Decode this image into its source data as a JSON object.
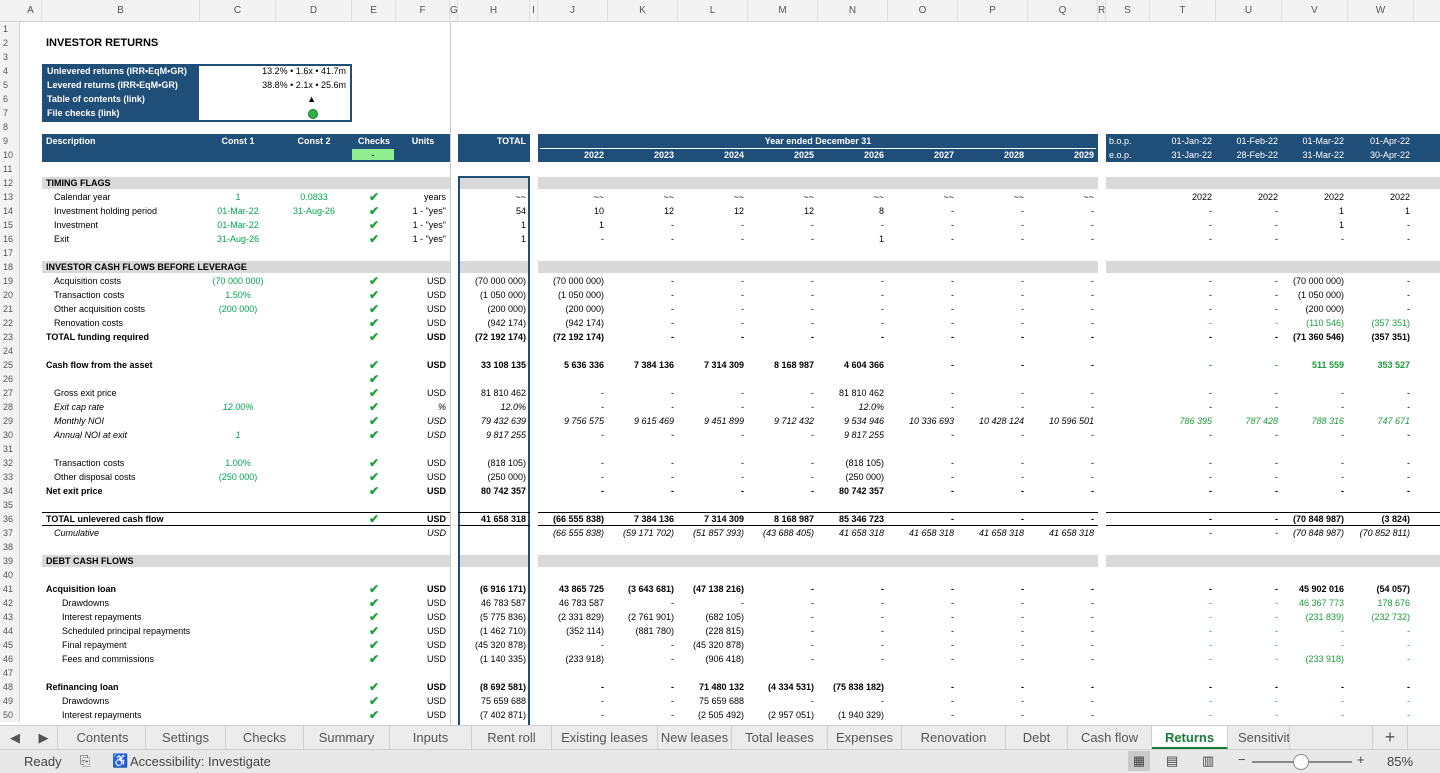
{
  "columns": [
    "A",
    "B",
    "C",
    "D",
    "E",
    "F",
    "G",
    "H",
    "I",
    "J",
    "K",
    "L",
    "M",
    "N",
    "O",
    "P",
    "Q",
    "R",
    "S",
    "T",
    "U",
    "V",
    "W"
  ],
  "rows": [
    "1",
    "2",
    "3",
    "4",
    "5",
    "6",
    "7",
    "8",
    "9",
    "10",
    "11",
    "12",
    "13",
    "14",
    "15",
    "16",
    "17",
    "18",
    "19",
    "20",
    "21",
    "22",
    "23",
    "24",
    "25",
    "26",
    "27",
    "28",
    "29",
    "30",
    "31",
    "32",
    "33",
    "34",
    "35",
    "36",
    "37",
    "38",
    "39",
    "40",
    "41",
    "42",
    "43",
    "44",
    "45",
    "46",
    "47",
    "48",
    "49",
    "50"
  ],
  "title": "INVESTOR RETURNS",
  "summary": [
    {
      "label": "Unlevered returns (IRR•EqM•GR)",
      "value": "13.2% • 1.6x • 41.7m"
    },
    {
      "label": "Levered returns (IRR•EqM•GR)",
      "value": "38.8% • 2.1x • 25.6m"
    },
    {
      "label": "Table of contents (link)",
      "value": "▲"
    },
    {
      "label": "File checks (link)",
      "value": ""
    }
  ],
  "header": {
    "description": "Description",
    "const1": "Const 1",
    "const2": "Const 2",
    "checks": "Checks",
    "units": "Units",
    "total": "TOTAL",
    "year_ended": "Year ended December 31",
    "checks_value": "-",
    "years": [
      "2022",
      "2023",
      "2024",
      "2025",
      "2026",
      "2027",
      "2028",
      "2029"
    ],
    "bop": "b.o.p.",
    "eop": "e.o.p.",
    "month_starts": [
      "01-Jan-22",
      "01-Feb-22",
      "01-Mar-22",
      "01-Apr-22"
    ],
    "month_ends": [
      "31-Jan-22",
      "28-Feb-22",
      "31-Mar-22",
      "30-Apr-22"
    ]
  },
  "sections": {
    "timing": "TIMING FLAGS",
    "investor": "INVESTOR CASH FLOWS BEFORE LEVERAGE",
    "debt": "DEBT CASH FLOWS"
  },
  "lines": [
    {
      "r": 13,
      "d": "Calendar year",
      "c1": "1",
      "c2": "0.0833",
      "chk": true,
      "u": "years",
      "t": "~~",
      "y": [
        "~~",
        "~~",
        "~~",
        "~~",
        "~~",
        "~~",
        "~~",
        "~~"
      ],
      "m": [
        "2022",
        "2022",
        "2022",
        "2022"
      ]
    },
    {
      "r": 14,
      "d": "Investment holding period",
      "c1": "01-Mar-22",
      "c2": "31-Aug-26",
      "chk": true,
      "u": "1 - \"yes\"",
      "t": "54",
      "y": [
        "10",
        "12",
        "12",
        "12",
        "8",
        "-",
        "-",
        "-"
      ],
      "m": [
        "-",
        "-",
        "1",
        "1"
      ]
    },
    {
      "r": 15,
      "d": "Investment",
      "ind": 1,
      "c1": "01-Mar-22",
      "c2": "",
      "chk": true,
      "u": "1 - \"yes\"",
      "t": "1",
      "y": [
        "1",
        "-",
        "-",
        "-",
        "-",
        "-",
        "-",
        "-"
      ],
      "m": [
        "-",
        "-",
        "1",
        "-"
      ]
    },
    {
      "r": 16,
      "d": "Exit",
      "ind": 1,
      "c1": "31-Aug-26",
      "c2": "",
      "chk": true,
      "u": "1 - \"yes\"",
      "t": "1",
      "y": [
        "-",
        "-",
        "-",
        "-",
        "1",
        "-",
        "-",
        "-"
      ],
      "m": [
        "-",
        "-",
        "-",
        "-"
      ]
    },
    {
      "r": 19,
      "d": "Acquisition costs",
      "c1": "(70 000 000)",
      "chk": true,
      "u": "USD",
      "t": "(70 000 000)",
      "y": [
        "(70 000 000)",
        "-",
        "-",
        "-",
        "-",
        "-",
        "-",
        "-"
      ],
      "m": [
        "-",
        "-",
        "(70 000 000)",
        "-"
      ]
    },
    {
      "r": 20,
      "d": "Transaction costs",
      "c1": "1.50%",
      "chk": true,
      "u": "USD",
      "t": "(1 050 000)",
      "y": [
        "(1 050 000)",
        "-",
        "-",
        "-",
        "-",
        "-",
        "-",
        "-"
      ],
      "m": [
        "-",
        "-",
        "(1 050 000)",
        "-"
      ]
    },
    {
      "r": 21,
      "d": "Other acquisition costs",
      "c1": "(200 000)",
      "chk": true,
      "u": "USD",
      "t": "(200 000)",
      "y": [
        "(200 000)",
        "-",
        "-",
        "-",
        "-",
        "-",
        "-",
        "-"
      ],
      "m": [
        "-",
        "-",
        "(200 000)",
        "-"
      ]
    },
    {
      "r": 22,
      "d": "Renovation costs",
      "chk": true,
      "u": "USD",
      "t": "(942 174)",
      "y": [
        "(942 174)",
        "-",
        "-",
        "-",
        "-",
        "-",
        "-",
        "-"
      ],
      "m": [
        "-",
        "-",
        "(110 546)",
        "(357 351)"
      ],
      "mg": true
    },
    {
      "r": 23,
      "d": "TOTAL funding required",
      "bold": true,
      "ind": 0,
      "chk": true,
      "u": "USD",
      "t": "(72 192 174)",
      "y": [
        "(72 192 174)",
        "-",
        "-",
        "-",
        "-",
        "-",
        "-",
        "-"
      ],
      "m": [
        "-",
        "-",
        "(71 360 546)",
        "(357 351)"
      ]
    },
    {
      "r": 25,
      "d": "Cash flow from the asset",
      "bold": true,
      "ind": 0,
      "chk": true,
      "u": "USD",
      "t": "33 108 135",
      "y": [
        "5 636 336",
        "7 384 136",
        "7 314 309",
        "8 168 987",
        "4 604 366",
        "-",
        "-",
        "-"
      ],
      "m": [
        "-",
        "-",
        "511 559",
        "353 527"
      ],
      "mg": true
    },
    {
      "r": 26,
      "chk": true
    },
    {
      "r": 27,
      "d": "Gross exit price",
      "chk": true,
      "u": "USD",
      "t": "81 810 462",
      "y": [
        "-",
        "-",
        "-",
        "-",
        "81 810 462",
        "-",
        "-",
        "-"
      ],
      "m": [
        "-",
        "-",
        "-",
        "-"
      ]
    },
    {
      "r": 28,
      "d": "Exit cap rate",
      "it": true,
      "c1": "12.00%",
      "chk": true,
      "u": "%",
      "t": "12.0%",
      "y": [
        "-",
        "-",
        "-",
        "-",
        "12.0%",
        "-",
        "-",
        "-"
      ],
      "m": [
        "-",
        "-",
        "-",
        "-"
      ]
    },
    {
      "r": 29,
      "d": "Monthly NOI",
      "it": true,
      "chk": true,
      "u": "USD",
      "t": "79 432 639",
      "y": [
        "9 756 575",
        "9 615 469",
        "9 451 899",
        "9 712 432",
        "9 534 946",
        "10 336 693",
        "10 428 124",
        "10 596 501"
      ],
      "m": [
        "786 395",
        "787 428",
        "788 316",
        "747 671"
      ],
      "mg": true
    },
    {
      "r": 30,
      "d": "Annual NOI at exit",
      "it": true,
      "c1": "1",
      "chk": true,
      "u": "USD",
      "t": "9 817 255",
      "y": [
        "-",
        "-",
        "-",
        "-",
        "9 817 255",
        "-",
        "-",
        "-"
      ],
      "m": [
        "-",
        "-",
        "-",
        "-"
      ]
    },
    {
      "r": 32,
      "d": "Transaction costs",
      "c1": "1.00%",
      "chk": true,
      "u": "USD",
      "t": "(818 105)",
      "y": [
        "-",
        "-",
        "-",
        "-",
        "(818 105)",
        "-",
        "-",
        "-"
      ],
      "m": [
        "-",
        "-",
        "-",
        "-"
      ]
    },
    {
      "r": 33,
      "d": "Other disposal costs",
      "c1": "(250 000)",
      "chk": true,
      "u": "USD",
      "t": "(250 000)",
      "y": [
        "-",
        "-",
        "-",
        "-",
        "(250 000)",
        "-",
        "-",
        "-"
      ],
      "m": [
        "-",
        "-",
        "-",
        "-"
      ]
    },
    {
      "r": 34,
      "d": "Net exit price",
      "bold": true,
      "chk": true,
      "u": "USD",
      "t": "80 742 357",
      "y": [
        "-",
        "-",
        "-",
        "-",
        "80 742 357",
        "-",
        "-",
        "-"
      ],
      "m": [
        "-",
        "-",
        "-",
        "-"
      ]
    },
    {
      "r": 36,
      "d": "TOTAL unlevered cash flow",
      "bold": true,
      "ind": 0,
      "chk": true,
      "u": "USD",
      "t": "41 658 318",
      "y": [
        "(66 555 838)",
        "7 384 136",
        "7 314 309",
        "8 168 987",
        "85 346 723",
        "-",
        "-",
        "-"
      ],
      "m": [
        "-",
        "-",
        "(70 848 987)",
        "(3 824)"
      ]
    },
    {
      "r": 37,
      "d": "Cumulative",
      "it": true,
      "u": "USD",
      "t": "",
      "y": [
        "(66 555 838)",
        "(59 171 702)",
        "(51 857 393)",
        "(43 688 405)",
        "41 658 318",
        "41 658 318",
        "41 658 318",
        "41 658 318"
      ],
      "m": [
        "-",
        "-",
        "(70 848 987)",
        "(70 852 811)"
      ]
    },
    {
      "r": 41,
      "d": "Acquisition loan",
      "bold": true,
      "chk": true,
      "u": "USD",
      "t": "(6 916 171)",
      "y": [
        "43 865 725",
        "(3 643 681)",
        "(47 138 216)",
        "-",
        "-",
        "-",
        "-",
        "-"
      ],
      "m": [
        "-",
        "-",
        "45 902 016",
        "(54 057)"
      ]
    },
    {
      "r": 42,
      "d": "Drawdowns",
      "ind": 2,
      "chk": true,
      "u": "USD",
      "t": "46 783 587",
      "y": [
        "46 783 587",
        "-",
        "-",
        "-",
        "-",
        "-",
        "-",
        "-"
      ],
      "m": [
        "-",
        "-",
        "46 367 773",
        "178 676"
      ],
      "mg": true
    },
    {
      "r": 43,
      "d": "Interest repayments",
      "ind": 2,
      "chk": true,
      "u": "USD",
      "t": "(5 775 836)",
      "y": [
        "(2 331 829)",
        "(2 761 901)",
        "(682 105)",
        "-",
        "-",
        "-",
        "-",
        "-"
      ],
      "m": [
        "-",
        "-",
        "(231 839)",
        "(232 732)"
      ],
      "mg": true
    },
    {
      "r": 44,
      "d": "Scheduled principal repayments",
      "ind": 2,
      "chk": true,
      "u": "USD",
      "t": "(1 462 710)",
      "y": [
        "(352 114)",
        "(881 780)",
        "(228 815)",
        "-",
        "-",
        "-",
        "-",
        "-"
      ],
      "m": [
        "-",
        "-",
        "-",
        "-"
      ],
      "mg": true
    },
    {
      "r": 45,
      "d": "Final repayment",
      "ind": 2,
      "chk": true,
      "u": "USD",
      "t": "(45 320 878)",
      "y": [
        "-",
        "-",
        "(45 320 878)",
        "-",
        "-",
        "-",
        "-",
        "-"
      ],
      "m": [
        "-",
        "-",
        "-",
        "-"
      ],
      "mg": true
    },
    {
      "r": 46,
      "d": "Fees and commissions",
      "ind": 2,
      "chk": true,
      "u": "USD",
      "t": "(1 140 335)",
      "y": [
        "(233 918)",
        "-",
        "(906 418)",
        "-",
        "-",
        "-",
        "-",
        "-"
      ],
      "m": [
        "-",
        "-",
        "(233 918)",
        "-"
      ],
      "mg": true
    },
    {
      "r": 48,
      "d": "Refinancing loan",
      "bold": true,
      "chk": true,
      "u": "USD",
      "t": "(8 692 581)",
      "y": [
        "-",
        "-",
        "71 480 132",
        "(4 334 531)",
        "(75 838 182)",
        "-",
        "-",
        "-"
      ],
      "m": [
        "-",
        "-",
        "-",
        "-"
      ]
    },
    {
      "r": 49,
      "d": "Drawdowns",
      "ind": 2,
      "chk": true,
      "u": "USD",
      "t": "75 659 688",
      "y": [
        "-",
        "-",
        "75 659 688",
        "-",
        "-",
        "-",
        "-",
        "-"
      ],
      "m": [
        "-",
        "-",
        "-",
        "-"
      ],
      "mg": true
    },
    {
      "r": 50,
      "d": "Interest repayments",
      "ind": 2,
      "chk": true,
      "u": "USD",
      "t": "(7 402 871)",
      "y": [
        "-",
        "-",
        "(2 505 492)",
        "(2 957 051)",
        "(1 940 329)",
        "-",
        "-",
        "-"
      ],
      "m": [
        "-",
        "-",
        "-",
        "-"
      ],
      "mg": true
    }
  ],
  "tabs": [
    "Contents",
    "Settings",
    "Checks",
    "Summary",
    "Inputs",
    "Rent roll",
    "Existing leases",
    "New leases",
    "Total leases",
    "Expenses",
    "Renovation",
    "Debt",
    "Cash flow",
    "Returns",
    "Sensitivit"
  ],
  "active_tab": "Returns",
  "status": {
    "ready": "Ready",
    "accessibility": "Accessibility: Investigate",
    "zoom": "85%",
    "zoom_level": 0.85
  },
  "colors": {
    "navy": "#1f4e79",
    "green": "#00a651",
    "check": "#1aa23a",
    "active_tab": "#1a7a3a"
  }
}
